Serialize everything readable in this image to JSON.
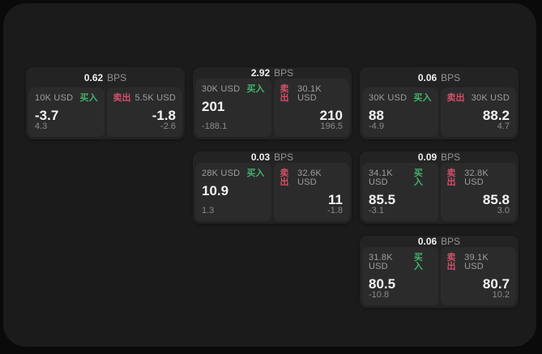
{
  "page": {
    "background": "#0a0a0a",
    "surface_background": "#1b1b1c"
  },
  "labels": {
    "bps_unit": "BPS",
    "buy": "买入",
    "sell": "卖出"
  },
  "colors": {
    "buy": "#43b16c",
    "sell": "#d15068",
    "price_text": "#f4f4f4",
    "muted_text": "#9e9e9e"
  },
  "cards": [
    {
      "col": 0,
      "row": 0,
      "bps": "0.62",
      "buy": {
        "notional": "10K USD",
        "price": "-3.7",
        "delta": "4.3"
      },
      "sell": {
        "notional": "5.5K USD",
        "price": "-1.8",
        "delta": "-2.6"
      }
    },
    {
      "col": 1,
      "row": 0,
      "bps": "2.92",
      "buy": {
        "notional": "30K USD",
        "price": "201",
        "delta": "-188.1"
      },
      "sell": {
        "notional": "30.1K USD",
        "price": "210",
        "delta": "196.5"
      }
    },
    {
      "col": 2,
      "row": 0,
      "bps": "0.06",
      "buy": {
        "notional": "30K USD",
        "price": "88",
        "delta": "-4.9"
      },
      "sell": {
        "notional": "30K USD",
        "price": "88.2",
        "delta": "4.7"
      }
    },
    {
      "col": 1,
      "row": 1,
      "bps": "0.03",
      "buy": {
        "notional": "28K USD",
        "price": "10.9",
        "delta": "1.3"
      },
      "sell": {
        "notional": "32.6K USD",
        "price": "11",
        "delta": "-1.8"
      }
    },
    {
      "col": 2,
      "row": 1,
      "bps": "0.09",
      "buy": {
        "notional": "34.1K USD",
        "price": "85.5",
        "delta": "-3.1"
      },
      "sell": {
        "notional": "32.8K USD",
        "price": "85.8",
        "delta": "3.0"
      }
    },
    {
      "col": 2,
      "row": 2,
      "bps": "0.06",
      "buy": {
        "notional": "31.8K USD",
        "price": "80.5",
        "delta": "-10.8"
      },
      "sell": {
        "notional": "39.1K USD",
        "price": "80.7",
        "delta": "10.2"
      }
    }
  ]
}
